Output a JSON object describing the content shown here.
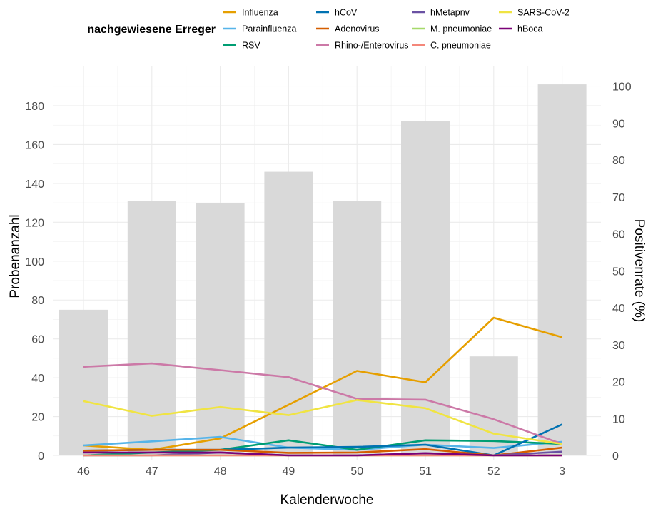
{
  "chart_data": {
    "type": "bar+line",
    "xlabel": "Kalenderwoche",
    "ylabel_left": "Probenanzahl",
    "ylabel_right": "Positivenrate (%)",
    "legend_title": "nachgewiesene Erreger",
    "legend_position": "top",
    "grid": true,
    "categories": [
      "46",
      "47",
      "48",
      "49",
      "50",
      "51",
      "52",
      "3"
    ],
    "ylim_left": [
      0,
      195
    ],
    "yticks_left": [
      0,
      20,
      40,
      60,
      80,
      100,
      120,
      140,
      160,
      180
    ],
    "ylim_right": [
      0,
      102
    ],
    "yticks_right": [
      0,
      10,
      20,
      30,
      40,
      50,
      60,
      70,
      80,
      90,
      100
    ],
    "bars": {
      "color": "#d9d9d9",
      "values": [
        75,
        131,
        130,
        146,
        131,
        172,
        51,
        191
      ]
    },
    "series": [
      {
        "name": "Influenza",
        "color": "#e69f00",
        "values": [
          2.7,
          1.5,
          4.6,
          13.7,
          22.9,
          19.8,
          37.3,
          32.0
        ]
      },
      {
        "name": "Parainfluenza",
        "color": "#56b4e9",
        "values": [
          2.7,
          3.8,
          5.0,
          2.1,
          1.5,
          2.9,
          2.0,
          3.7
        ]
      },
      {
        "name": "RSV",
        "color": "#009e73",
        "values": [
          0.0,
          0.8,
          1.5,
          4.1,
          1.5,
          4.1,
          3.9,
          3.1
        ]
      },
      {
        "name": "hCoV",
        "color": "#0072b2",
        "values": [
          1.3,
          1.5,
          1.5,
          2.1,
          2.3,
          2.9,
          0.0,
          8.4
        ]
      },
      {
        "name": "Adenovirus",
        "color": "#d55e00",
        "values": [
          1.3,
          1.5,
          1.5,
          0.7,
          0.8,
          1.7,
          0.0,
          2.1
        ]
      },
      {
        "name": "Rhino-/Enterovirus",
        "color": "#cc79a7",
        "values": [
          24.0,
          24.9,
          23.1,
          21.2,
          15.3,
          15.1,
          9.8,
          3.1
        ]
      },
      {
        "name": "hMetapnv",
        "color": "#6a51a3",
        "values": [
          0.0,
          0.0,
          0.8,
          0.0,
          0.0,
          0.6,
          0.0,
          1.0
        ]
      },
      {
        "name": "M. pneumoniae",
        "color": "#a6d96a",
        "values": [
          0.0,
          0.0,
          0.0,
          0.0,
          0.0,
          0.0,
          0.0,
          0.0
        ]
      },
      {
        "name": "C. pneumoniae",
        "color": "#f4877a",
        "values": [
          0.0,
          0.0,
          0.0,
          0.0,
          0.0,
          0.0,
          0.0,
          0.0
        ]
      },
      {
        "name": "SARS-CoV-2",
        "color": "#f0e442",
        "values": [
          14.7,
          10.7,
          13.1,
          10.9,
          15.0,
          12.8,
          5.9,
          3.1
        ]
      },
      {
        "name": "hBoca",
        "color": "#7a0177",
        "values": [
          0.8,
          0.8,
          0.8,
          0.0,
          0.0,
          0.6,
          0.0,
          0.0
        ]
      }
    ]
  }
}
